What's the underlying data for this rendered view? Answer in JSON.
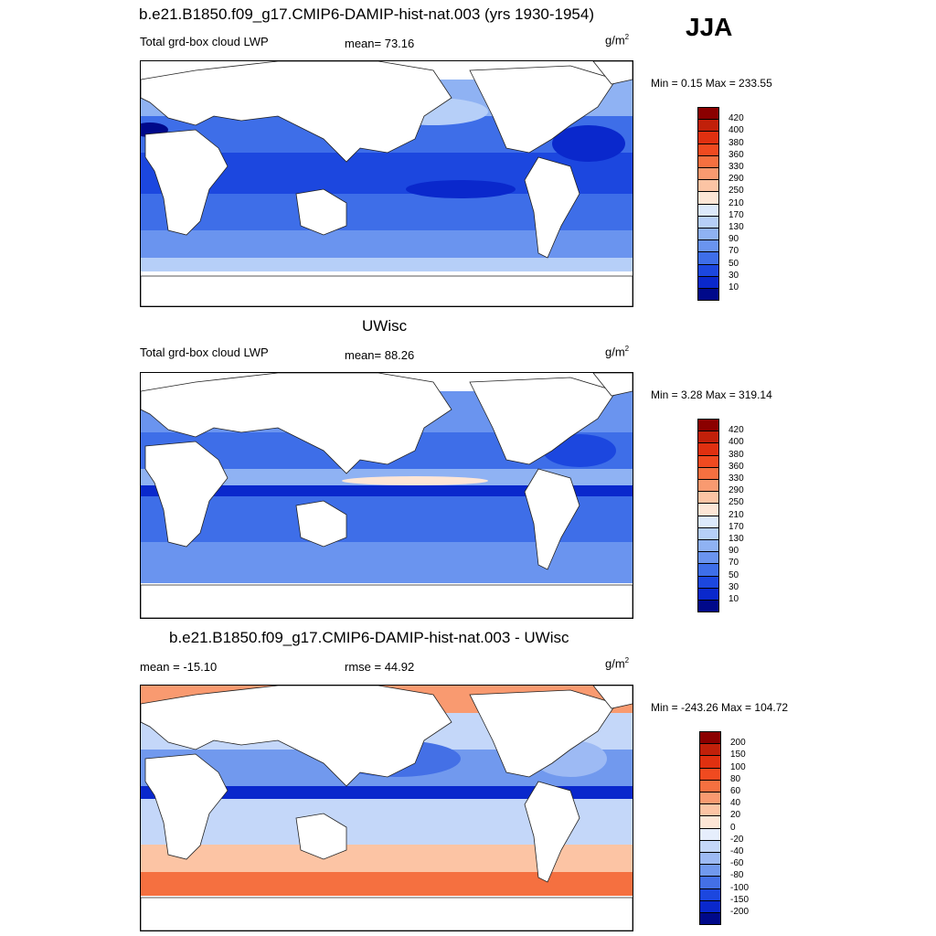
{
  "season": "JJA",
  "panels": [
    {
      "title": "b.e21.B1850.f09_g17.CMIP6-DAMIP-hist-nat.003 (yrs 1930-1954)",
      "left_label": "Total grd-box cloud LWP",
      "center_label": "mean=  73.16",
      "units": "g/m",
      "units_sup": "2",
      "minmax": "Min =   0.15 Max = 233.55",
      "colorbar": {
        "labels": [
          "420",
          "400",
          "380",
          "360",
          "330",
          "290",
          "250",
          "210",
          "170",
          "130",
          "90",
          "70",
          "50",
          "30",
          "10"
        ],
        "colors": [
          "#8b0000",
          "#c1200a",
          "#e03010",
          "#f04a20",
          "#f57040",
          "#f99a70",
          "#fcc4a4",
          "#fde6d6",
          "#dce9fb",
          "#b6cff8",
          "#8fb2f3",
          "#6a94ef",
          "#3e6ee8",
          "#1c47df",
          "#0a28cc",
          "#00098a"
        ]
      }
    },
    {
      "title": "UWisc",
      "left_label": "Total grd-box cloud LWP",
      "center_label": "mean=  88.26",
      "units": "g/m",
      "units_sup": "2",
      "minmax": "Min =   3.28 Max = 319.14",
      "colorbar": {
        "labels": [
          "420",
          "400",
          "380",
          "360",
          "330",
          "290",
          "250",
          "210",
          "170",
          "130",
          "90",
          "70",
          "50",
          "30",
          "10"
        ],
        "colors": [
          "#8b0000",
          "#c1200a",
          "#e03010",
          "#f04a20",
          "#f57040",
          "#f99a70",
          "#fcc4a4",
          "#fde6d6",
          "#dce9fb",
          "#b6cff8",
          "#8fb2f3",
          "#6a94ef",
          "#3e6ee8",
          "#1c47df",
          "#0a28cc",
          "#00098a"
        ]
      }
    },
    {
      "title": "b.e21.B1850.f09_g17.CMIP6-DAMIP-hist-nat.003 - UWisc",
      "left_label": "mean = -15.10",
      "center_label": "rmse =  44.92",
      "units": "g/m",
      "units_sup": "2",
      "minmax": "Min = -243.26 Max = 104.72",
      "colorbar": {
        "labels": [
          "200",
          "150",
          "100",
          "80",
          "60",
          "40",
          "20",
          "0",
          "-20",
          "-40",
          "-60",
          "-80",
          "-100",
          "-150",
          "-200"
        ],
        "colors": [
          "#8b0000",
          "#c1200a",
          "#e03010",
          "#f04a20",
          "#f57040",
          "#f99a70",
          "#fcc4a4",
          "#fde6d6",
          "#e6eefc",
          "#c4d7f9",
          "#9dbaf4",
          "#7199ee",
          "#4470e6",
          "#1c47df",
          "#0a28cc",
          "#00098a"
        ]
      }
    }
  ]
}
